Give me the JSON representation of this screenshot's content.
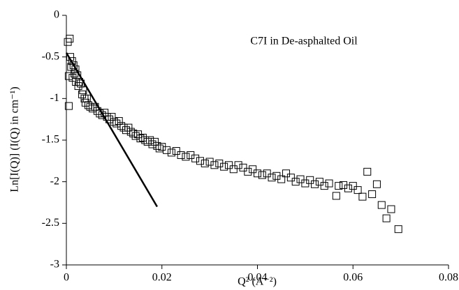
{
  "chart_data": {
    "type": "scatter",
    "annotation": "C7I in De-asphalted Oil",
    "x_label": "Q² (A⁻²)",
    "y_label": "Ln[I(Q)] (I(Q) in cm⁻¹)",
    "xlim": [
      0,
      0.08
    ],
    "xticks": [
      0,
      0.02,
      0.04,
      0.06,
      0.08
    ],
    "ylim": [
      -3,
      0
    ],
    "yticks": [
      0,
      -0.5,
      -1,
      -1.5,
      -2,
      -2.5,
      -3
    ],
    "series": [
      {
        "style": "markers",
        "color": "#000000",
        "x": [
          0.0003,
          0.0005,
          0.0005,
          0.0007,
          0.0008,
          0.001,
          0.0012,
          0.0013,
          0.0015,
          0.0017,
          0.0019,
          0.002,
          0.0023,
          0.0025,
          0.0027,
          0.003,
          0.0033,
          0.0035,
          0.0038,
          0.004,
          0.0043,
          0.0046,
          0.005,
          0.0055,
          0.006,
          0.0065,
          0.007,
          0.0075,
          0.008,
          0.0085,
          0.009,
          0.0095,
          0.01,
          0.0105,
          0.011,
          0.0115,
          0.012,
          0.0125,
          0.013,
          0.0135,
          0.014,
          0.0145,
          0.015,
          0.0155,
          0.016,
          0.0165,
          0.017,
          0.0175,
          0.018,
          0.0185,
          0.019,
          0.0195,
          0.02,
          0.021,
          0.022,
          0.023,
          0.024,
          0.025,
          0.026,
          0.027,
          0.028,
          0.029,
          0.03,
          0.031,
          0.032,
          0.033,
          0.034,
          0.035,
          0.036,
          0.037,
          0.038,
          0.039,
          0.04,
          0.041,
          0.042,
          0.043,
          0.044,
          0.045,
          0.046,
          0.047,
          0.048,
          0.049,
          0.05,
          0.051,
          0.052,
          0.053,
          0.054,
          0.055,
          0.0565,
          0.057,
          0.058,
          0.059,
          0.06,
          0.061,
          0.062,
          0.063,
          0.064,
          0.065,
          0.066,
          0.067,
          0.068,
          0.0695
        ],
        "values": [
          -0.32,
          -0.73,
          -1.09,
          -0.28,
          -0.5,
          -0.62,
          -0.55,
          -0.75,
          -0.6,
          -0.7,
          -0.65,
          -0.8,
          -0.72,
          -0.85,
          -0.8,
          -0.82,
          -0.95,
          -0.9,
          -1.0,
          -1.05,
          -1.0,
          -1.08,
          -1.1,
          -1.12,
          -1.1,
          -1.15,
          -1.18,
          -1.2,
          -1.17,
          -1.22,
          -1.25,
          -1.22,
          -1.28,
          -1.3,
          -1.27,
          -1.33,
          -1.35,
          -1.38,
          -1.35,
          -1.4,
          -1.42,
          -1.45,
          -1.43,
          -1.48,
          -1.47,
          -1.5,
          -1.52,
          -1.5,
          -1.55,
          -1.52,
          -1.57,
          -1.6,
          -1.58,
          -1.62,
          -1.65,
          -1.63,
          -1.68,
          -1.7,
          -1.68,
          -1.72,
          -1.75,
          -1.78,
          -1.76,
          -1.8,
          -1.78,
          -1.82,
          -1.8,
          -1.85,
          -1.8,
          -1.83,
          -1.88,
          -1.85,
          -1.9,
          -1.92,
          -1.9,
          -1.95,
          -1.93,
          -1.97,
          -1.9,
          -1.95,
          -2.0,
          -1.97,
          -2.02,
          -1.98,
          -2.03,
          -2.0,
          -2.05,
          -2.02,
          -2.17,
          -2.05,
          -2.04,
          -2.08,
          -2.05,
          -2.1,
          -2.18,
          -1.88,
          -2.15,
          -2.03,
          -2.28,
          -2.44,
          -2.33,
          -2.57
        ]
      },
      {
        "style": "line",
        "color": "#000000",
        "x": [
          0,
          0.019
        ],
        "values": [
          -0.45,
          -2.3
        ]
      }
    ]
  }
}
